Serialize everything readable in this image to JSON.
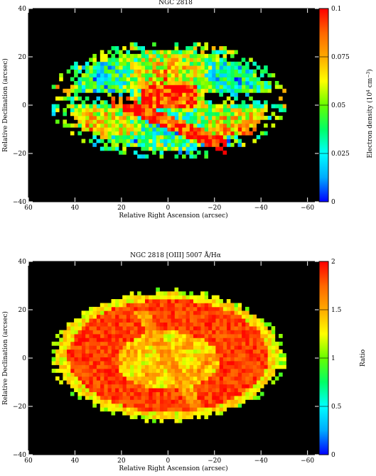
{
  "colors": {
    "background": "#000000",
    "colormap": [
      "#0000ff",
      "#00aaff",
      "#00ffff",
      "#00ff66",
      "#66ff00",
      "#ffff00",
      "#ffaa00",
      "#ff6600",
      "#ff0000"
    ]
  },
  "chart_data": [
    {
      "type": "heatmap",
      "title": "NGC 2818",
      "xlabel": "Relative Right Ascension (arcsec)",
      "ylabel": "Relative Declination (arcsec)",
      "xlim": [
        60,
        -65
      ],
      "ylim": [
        -40,
        40
      ],
      "xticks": [
        60,
        40,
        20,
        0,
        -20,
        -40,
        -60
      ],
      "xtick_labels": [
        "60",
        "40",
        "20",
        "0",
        "−20",
        "−40",
        "−60"
      ],
      "yticks": [
        -40,
        -20,
        0,
        20,
        40
      ],
      "ytick_labels": [
        "−40",
        "−20",
        "0",
        "20",
        "40"
      ],
      "colorbar": {
        "label_main": "Electron density (10",
        "label_sup1": "4",
        "label_mid": " cm",
        "label_sup2": "−3",
        "label_end": ")",
        "range": [
          0,
          0.1
        ],
        "ticks": [
          0,
          0.025,
          0.05,
          0.075,
          0.1
        ],
        "tick_labels": [
          "0",
          "0.025",
          "0.05",
          "0.075",
          "0.1"
        ]
      }
    },
    {
      "type": "heatmap",
      "title": "NGC 2818  [OIII] 5007 Å/Hα",
      "xlabel": "Relative Right Ascension (arcsec)",
      "ylabel": "Relative Declination (arcsec)",
      "xlim": [
        60,
        -65
      ],
      "ylim": [
        -40,
        40
      ],
      "xticks": [
        60,
        40,
        20,
        0,
        -20,
        -40,
        -60
      ],
      "xtick_labels": [
        "60",
        "40",
        "20",
        "0",
        "−20",
        "−40",
        "−60"
      ],
      "yticks": [
        -40,
        -20,
        0,
        20,
        40
      ],
      "ytick_labels": [
        "−40",
        "−20",
        "0",
        "20",
        "40"
      ],
      "colorbar": {
        "label_main": "Ratio",
        "range": [
          0,
          2
        ],
        "ticks": [
          0,
          0.5,
          1,
          1.5,
          2
        ],
        "tick_labels": [
          "0",
          "0.5",
          "1",
          "1.5",
          "2"
        ]
      }
    }
  ]
}
